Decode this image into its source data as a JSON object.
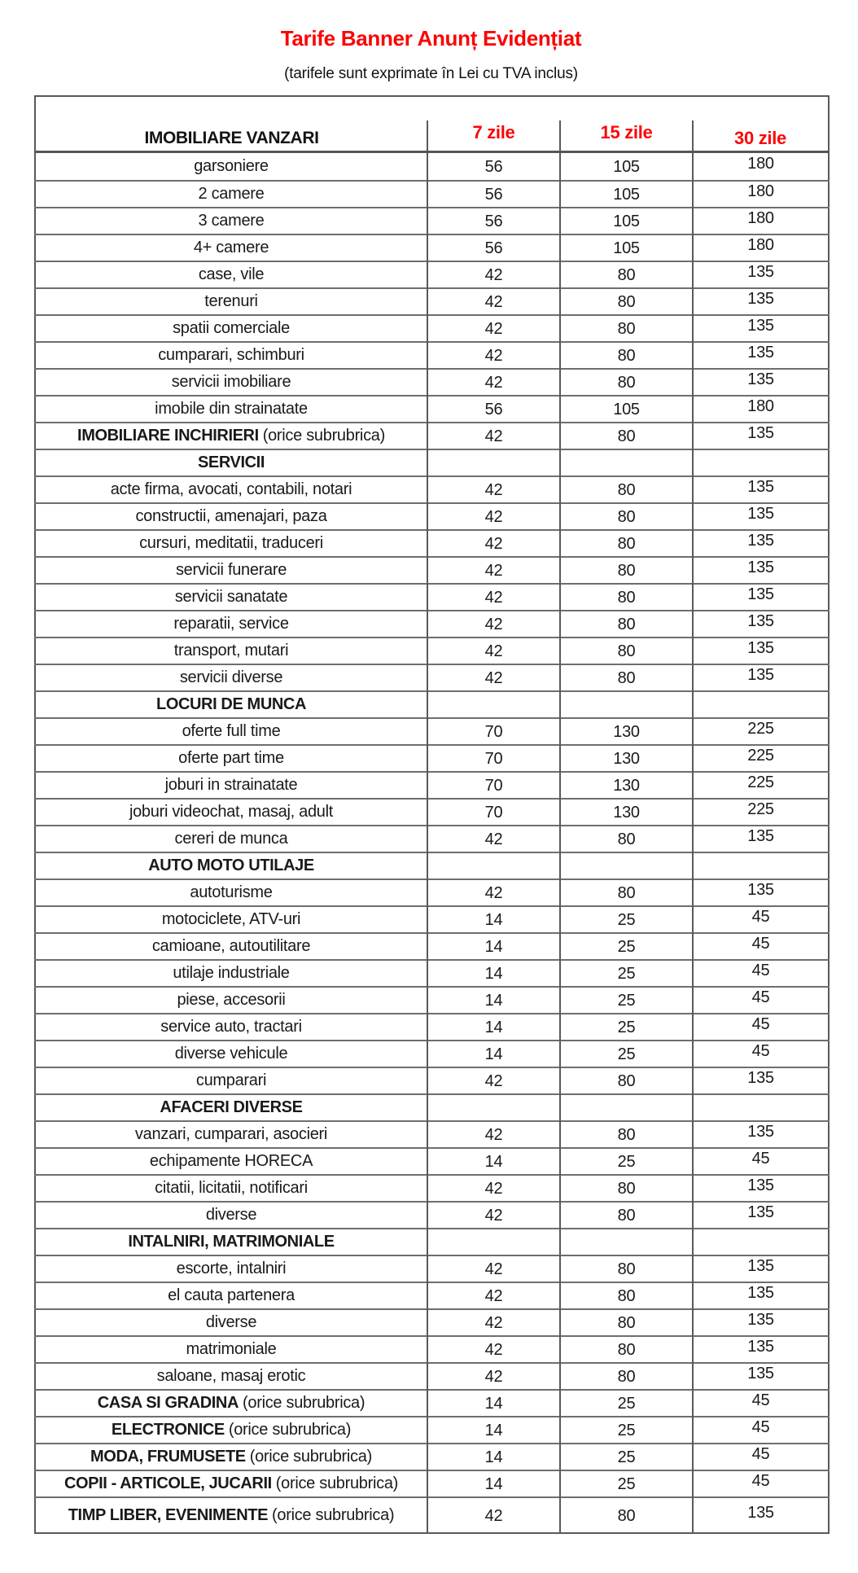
{
  "page": {
    "title": "Tarife Banner Anunț Evidențiat",
    "subtitle": "(tarifele sunt exprimate în Lei cu TVA inclus)",
    "accent_color": "#fb0404",
    "currency_note": "Lei cu TVA inclus"
  },
  "table": {
    "header": {
      "category": "IMOBILIARE VANZARI",
      "columns": [
        "7 zile",
        "15 zile",
        "30 zile"
      ]
    },
    "rows": [
      {
        "label": "garsoniere",
        "values": [
          "56",
          "105",
          "180"
        ]
      },
      {
        "label": "2 camere",
        "values": [
          "56",
          "105",
          "180"
        ]
      },
      {
        "label": "3 camere",
        "values": [
          "56",
          "105",
          "180"
        ]
      },
      {
        "label": "4+ camere",
        "values": [
          "56",
          "105",
          "180"
        ]
      },
      {
        "label": "case, vile",
        "values": [
          "42",
          "80",
          "135"
        ]
      },
      {
        "label": "terenuri",
        "values": [
          "42",
          "80",
          "135"
        ]
      },
      {
        "label": "spatii comerciale",
        "values": [
          "42",
          "80",
          "135"
        ]
      },
      {
        "label": "cumparari, schimburi",
        "values": [
          "42",
          "80",
          "135"
        ]
      },
      {
        "label": "servicii imobiliare",
        "values": [
          "42",
          "80",
          "135"
        ]
      },
      {
        "label": "imobile din strainatate",
        "values": [
          "56",
          "105",
          "180"
        ]
      },
      {
        "label_bold": "IMOBILIARE INCHIRIERI",
        "label_rest": "(orice subrubrica)",
        "values": [
          "42",
          "80",
          "135"
        ]
      },
      {
        "label": "SERVICII",
        "section": true
      },
      {
        "label": "acte firma, avocati, contabili, notari",
        "values": [
          "42",
          "80",
          "135"
        ]
      },
      {
        "label": "constructii, amenajari, paza",
        "values": [
          "42",
          "80",
          "135"
        ]
      },
      {
        "label": "cursuri, meditatii, traduceri",
        "values": [
          "42",
          "80",
          "135"
        ]
      },
      {
        "label": "servicii funerare",
        "values": [
          "42",
          "80",
          "135"
        ]
      },
      {
        "label": "servicii sanatate",
        "values": [
          "42",
          "80",
          "135"
        ]
      },
      {
        "label": "reparatii, service",
        "values": [
          "42",
          "80",
          "135"
        ]
      },
      {
        "label": "transport, mutari",
        "values": [
          "42",
          "80",
          "135"
        ]
      },
      {
        "label": "servicii diverse",
        "values": [
          "42",
          "80",
          "135"
        ]
      },
      {
        "label": "LOCURI DE MUNCA",
        "section": true
      },
      {
        "label": "oferte full time",
        "values": [
          "70",
          "130",
          "225"
        ]
      },
      {
        "label": "oferte part time",
        "values": [
          "70",
          "130",
          "225"
        ]
      },
      {
        "label": "joburi in strainatate",
        "values": [
          "70",
          "130",
          "225"
        ]
      },
      {
        "label": "joburi videochat, masaj, adult",
        "values": [
          "70",
          "130",
          "225"
        ]
      },
      {
        "label": "cereri de munca",
        "values": [
          "42",
          "80",
          "135"
        ]
      },
      {
        "label": "AUTO MOTO UTILAJE",
        "section": true
      },
      {
        "label": "autoturisme",
        "values": [
          "42",
          "80",
          "135"
        ]
      },
      {
        "label": "motociclete, ATV-uri",
        "values": [
          "14",
          "25",
          "45"
        ]
      },
      {
        "label": "camioane, autoutilitare",
        "values": [
          "14",
          "25",
          "45"
        ]
      },
      {
        "label": "utilaje industriale",
        "values": [
          "14",
          "25",
          "45"
        ]
      },
      {
        "label": "piese, accesorii",
        "values": [
          "14",
          "25",
          "45"
        ]
      },
      {
        "label": "service auto, tractari",
        "values": [
          "14",
          "25",
          "45"
        ]
      },
      {
        "label": "diverse vehicule",
        "values": [
          "14",
          "25",
          "45"
        ]
      },
      {
        "label": "cumparari",
        "values": [
          "42",
          "80",
          "135"
        ]
      },
      {
        "label": "AFACERI DIVERSE",
        "section": true
      },
      {
        "label": "vanzari, cumparari, asocieri",
        "values": [
          "42",
          "80",
          "135"
        ]
      },
      {
        "label": "echipamente HORECA",
        "values": [
          "14",
          "25",
          "45"
        ]
      },
      {
        "label": "citatii, licitatii, notificari",
        "values": [
          "42",
          "80",
          "135"
        ]
      },
      {
        "label": "diverse",
        "values": [
          "42",
          "80",
          "135"
        ]
      },
      {
        "label": "INTALNIRI, MATRIMONIALE",
        "section": true
      },
      {
        "label": "escorte, intalniri",
        "values": [
          "42",
          "80",
          "135"
        ]
      },
      {
        "label": "el cauta partenera",
        "values": [
          "42",
          "80",
          "135"
        ]
      },
      {
        "label": "diverse",
        "values": [
          "42",
          "80",
          "135"
        ]
      },
      {
        "label": "matrimoniale",
        "values": [
          "42",
          "80",
          "135"
        ]
      },
      {
        "label": "saloane, masaj erotic",
        "values": [
          "42",
          "80",
          "135"
        ]
      },
      {
        "label_bold": "CASA SI GRADINA",
        "label_rest": "(orice subrubrica)",
        "values": [
          "14",
          "25",
          "45"
        ]
      },
      {
        "label_bold": "ELECTRONICE",
        "label_rest": "(orice subrubrica)",
        "values": [
          "14",
          "25",
          "45"
        ]
      },
      {
        "label_bold": "MODA, FRUMUSETE",
        "label_rest": "(orice subrubrica)",
        "values": [
          "14",
          "25",
          "45"
        ]
      },
      {
        "label_bold": "COPII  - ARTICOLE, JUCARII",
        "label_rest": "(orice subrubrica)",
        "values": [
          "14",
          "25",
          "45"
        ]
      },
      {
        "label_bold": "TIMP LIBER, EVENIMENTE",
        "label_rest": "(orice subrubrica)",
        "values": [
          "42",
          "80",
          "135"
        ]
      }
    ]
  }
}
